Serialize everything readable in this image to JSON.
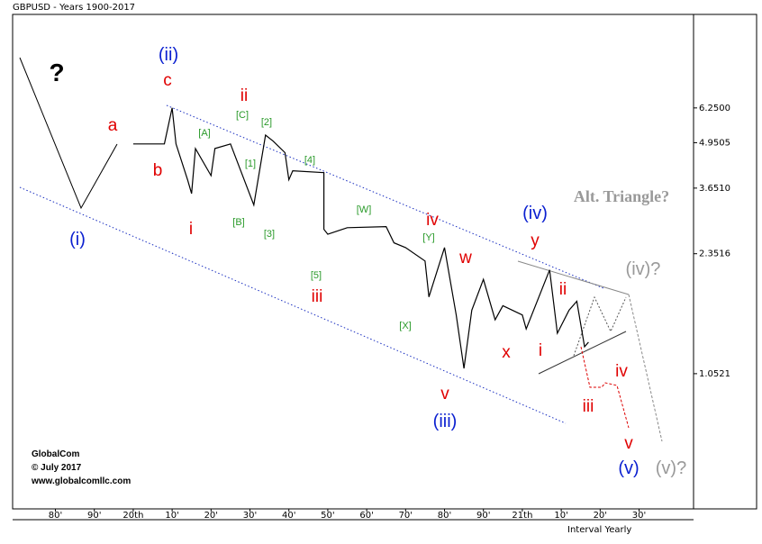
{
  "chart_data": {
    "type": "line",
    "title": "GBPUSD - Years 1900-2017",
    "x_axis_label": "Interval Yearly",
    "x": [
      1900,
      1908,
      1910,
      1911,
      1914,
      1915,
      1916,
      1920,
      1921,
      1925,
      1931,
      1934,
      1936,
      1939,
      1940,
      1941,
      1949,
      1949,
      1950,
      1955,
      1965,
      1967,
      1970,
      1975,
      1976,
      1980,
      1983,
      1985,
      1987,
      1990,
      1993,
      1995,
      2000,
      2001,
      2007,
      2009,
      2012,
      2014,
      2016,
      2017
    ],
    "values": [
      4.91,
      4.91,
      6.25,
      4.91,
      3.85,
      3.52,
      4.76,
      3.97,
      4.76,
      4.91,
      3.26,
      5.21,
      5.0,
      4.63,
      3.86,
      4.1,
      4.05,
      2.77,
      2.68,
      2.8,
      2.82,
      2.53,
      2.45,
      2.24,
      1.76,
      2.45,
      1.56,
      1.09,
      1.61,
      1.98,
      1.51,
      1.66,
      1.56,
      1.42,
      2.11,
      1.38,
      1.61,
      1.71,
      1.26,
      1.3
    ],
    "color": "#000000",
    "log_scale": true,
    "xlim": [
      1869,
      2044
    ],
    "xticks": [
      {
        "value": 1880,
        "label": "80'"
      },
      {
        "value": 1890,
        "label": "90'"
      },
      {
        "value": 1900,
        "label": "20th"
      },
      {
        "value": 1910,
        "label": "10'"
      },
      {
        "value": 1920,
        "label": "20'"
      },
      {
        "value": 1930,
        "label": "30'"
      },
      {
        "value": 1940,
        "label": "40'"
      },
      {
        "value": 1950,
        "label": "50'"
      },
      {
        "value": 1960,
        "label": "60'"
      },
      {
        "value": 1970,
        "label": "70'"
      },
      {
        "value": 1980,
        "label": "80'"
      },
      {
        "value": 1990,
        "label": "90'"
      },
      {
        "value": 2000,
        "label": "21th"
      },
      {
        "value": 2010,
        "label": "10'"
      },
      {
        "value": 2020,
        "label": "20'"
      },
      {
        "value": 2030,
        "label": "30'"
      }
    ],
    "ylim": [
      0.425,
      11.7
    ],
    "yticks": [
      {
        "value": 6.25,
        "label": "6.2500"
      },
      {
        "value": 4.9505,
        "label": "4.9505"
      },
      {
        "value": 3.651,
        "label": "3.6510"
      },
      {
        "value": 2.3516,
        "label": "2.3516"
      },
      {
        "value": 1.0521,
        "label": "1.0521"
      }
    ],
    "annotations": [
      "?",
      "(ii)",
      "c",
      "ii",
      "a",
      "b",
      "[C]",
      "[2]",
      "[A]",
      "[1]",
      "[4]",
      "i",
      "[B]",
      "[3]",
      "(i)",
      "[W]",
      "iv",
      "[Y]",
      "(iv)",
      "y",
      "w",
      "[5]",
      "iii",
      "[X]",
      "x",
      "i",
      "ii",
      "v",
      "(iii)",
      "Alt. Triangle?",
      "(iv)?",
      "iv",
      "iii",
      "v",
      "(v)",
      "(v)?"
    ],
    "footer": [
      "GlobalCom",
      "© July 2017",
      "www.globalcomllc.com"
    ]
  }
}
